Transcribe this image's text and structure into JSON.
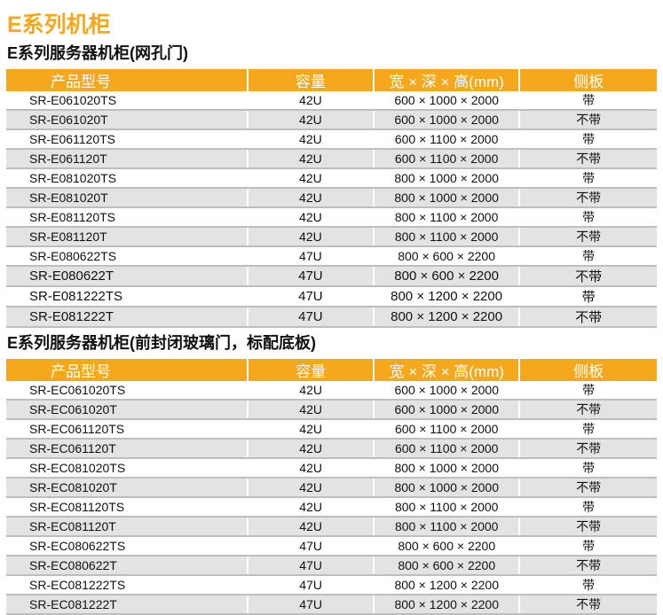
{
  "title": "E系列机柜",
  "headers": [
    "产品型号",
    "容量",
    "宽 × 深 × 高(mm)",
    "侧板"
  ],
  "table1": {
    "title": "E系列服务器机柜(网孔门)",
    "rows": [
      [
        "SR-E061020TS",
        "42U",
        "600 × 1000 × 2000",
        "带"
      ],
      [
        "SR-E061020T",
        "42U",
        "600 × 1000 × 2000",
        "不带"
      ],
      [
        "SR-E061120TS",
        "42U",
        "600 × 1100 × 2000",
        "带"
      ],
      [
        "SR-E061120T",
        "42U",
        "600 × 1100 × 2000",
        "不带"
      ],
      [
        "SR-E081020TS",
        "42U",
        "800 × 1000 × 2000",
        "带"
      ],
      [
        "SR-E081020T",
        "42U",
        "800 × 1000 × 2000",
        "不带"
      ],
      [
        "SR-E081120TS",
        "42U",
        "800 × 1100 × 2000",
        "带"
      ],
      [
        "SR-E081120T",
        "42U",
        "800 × 1100 × 2000",
        "不带"
      ],
      [
        "SR-E080622TS",
        "47U",
        "800 × 600 × 2200",
        "带"
      ],
      [
        "SR-E080622T",
        "47U",
        "800 × 600 × 2200",
        "不带"
      ],
      [
        "SR-E081222TS",
        "47U",
        "800 × 1200 × 2200",
        "带"
      ],
      [
        "SR-E081222T",
        "47U",
        "800 × 1200 × 2200",
        "不带"
      ]
    ]
  },
  "table2": {
    "title": "E系列服务器机柜(前封闭玻璃门，标配底板)",
    "rows": [
      [
        "SR-EC061020TS",
        "42U",
        "600 × 1000 × 2000",
        "带"
      ],
      [
        "SR-EC061020T",
        "42U",
        "600 × 1000 × 2000",
        "不带"
      ],
      [
        "SR-EC061120TS",
        "42U",
        "600 × 1100 × 2000",
        "带"
      ],
      [
        "SR-EC061120T",
        "42U",
        "600 × 1100 × 2000",
        "不带"
      ],
      [
        "SR-EC081020TS",
        "42U",
        "800 × 1000 × 2000",
        "带"
      ],
      [
        "SR-EC081020T",
        "42U",
        "800 × 1000 × 2000",
        "不带"
      ],
      [
        "SR-EC081120TS",
        "42U",
        "800 × 1100 × 2000",
        "带"
      ],
      [
        "SR-EC081120T",
        "42U",
        "800 × 1100 × 2000",
        "不带"
      ],
      [
        "SR-EC080622TS",
        "47U",
        "800 × 600 × 2200",
        "带"
      ],
      [
        "SR-EC080622T",
        "47U",
        "800 × 600 × 2200",
        "不带"
      ],
      [
        "SR-EC081222TS",
        "47U",
        "800 × 1200 × 2200",
        "带"
      ],
      [
        "SR-EC081222T",
        "47U",
        "800 × 1200 × 2200",
        "不带"
      ]
    ]
  }
}
